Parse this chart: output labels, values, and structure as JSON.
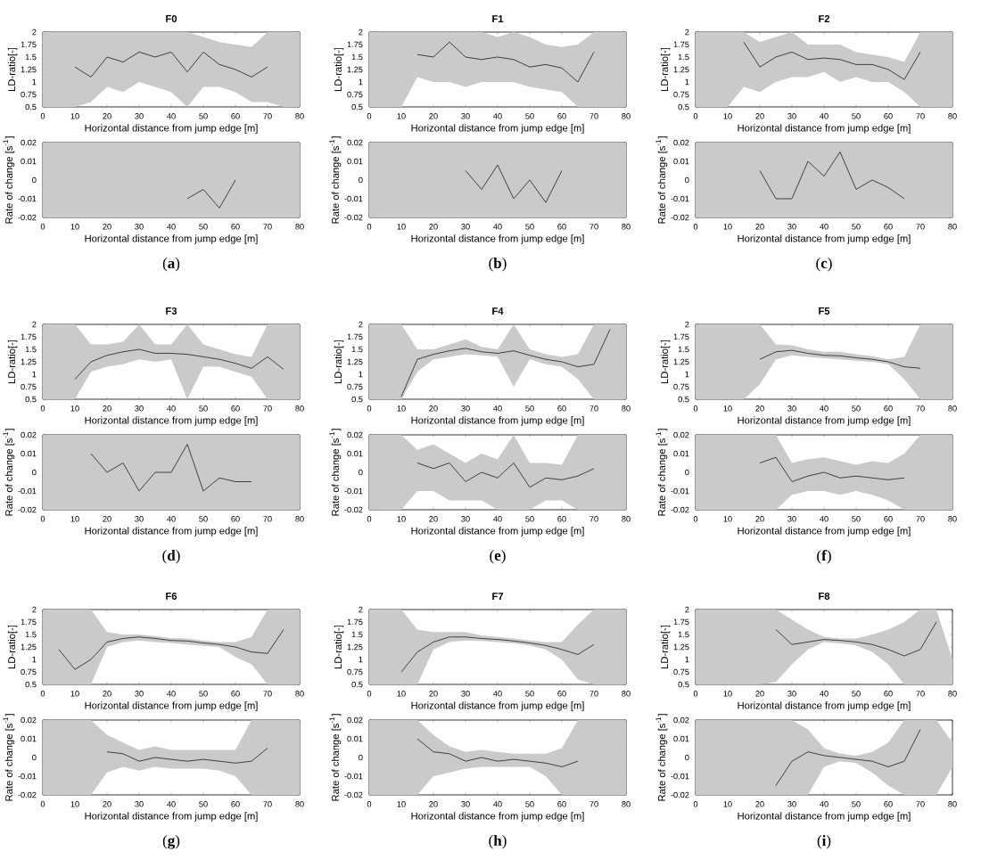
{
  "chart_data": [
    {
      "type": "line",
      "title": "F0",
      "xlabel": "Horizontal distance from jump edge [m]",
      "ylabel": "LD-ratio[-]",
      "x": [
        0,
        5,
        10,
        15,
        20,
        25,
        30,
        35,
        40,
        45,
        50,
        55,
        60,
        65,
        70,
        75,
        80
      ],
      "xlim": [
        0,
        80
      ],
      "ylim": [
        0.5,
        2
      ],
      "xticks": [
        0,
        10,
        20,
        30,
        40,
        50,
        60,
        70,
        80
      ],
      "yticks": [
        0.5,
        0.75,
        1,
        1.25,
        1.5,
        1.75,
        2
      ],
      "series": [
        {
          "color": "#404040",
          "values": [
            null,
            null,
            1.3,
            1.1,
            1.5,
            1.4,
            1.6,
            1.5,
            1.6,
            1.2,
            1.6,
            1.35,
            1.25,
            1.1,
            1.3,
            null,
            null
          ],
          "lower": [
            0.5,
            0.5,
            0.5,
            0.6,
            0.9,
            0.8,
            1.0,
            0.9,
            0.8,
            0.5,
            0.9,
            0.9,
            0.8,
            0.6,
            0.6,
            0.5,
            0.5
          ],
          "upper": [
            2,
            2,
            2,
            2,
            2,
            2,
            2,
            2,
            2,
            2,
            1.9,
            1.8,
            1.75,
            1.7,
            2,
            2,
            2
          ]
        }
      ]
    },
    {
      "type": "line",
      "xlabel": "Horizontal distance from jump edge [m]",
      "ylabel": "Rate of change [s$^{-1}$]",
      "xlim": [
        0,
        80
      ],
      "ylim": [
        -0.02,
        0.02
      ],
      "xticks": [
        0,
        10,
        20,
        30,
        40,
        50,
        60,
        70,
        80
      ],
      "yticks": [
        -0.02,
        -0.01,
        0,
        0.01,
        0.02
      ],
      "annotations": [
        "(**a**)"
      ],
      "bands": [
        {
          "axis": "x",
          "from": 0,
          "to": 80,
          "color": "#cacaca"
        }
      ],
      "series": [
        {
          "color": "#404040",
          "x": [
            45,
            50,
            55,
            60
          ],
          "values": [
            -0.01,
            -0.005,
            -0.015,
            0.0
          ]
        }
      ]
    },
    {
      "type": "line",
      "title": "F1",
      "xlabel": "Horizontal distance from jump edge [m]",
      "ylabel": "LD-ratio[-]",
      "x": [
        0,
        5,
        10,
        15,
        20,
        25,
        30,
        35,
        40,
        45,
        50,
        55,
        60,
        65,
        70,
        75,
        80
      ],
      "xlim": [
        0,
        80
      ],
      "ylim": [
        0.5,
        2
      ],
      "xticks": [
        0,
        10,
        20,
        30,
        40,
        50,
        60,
        70,
        80
      ],
      "yticks": [
        0.5,
        0.75,
        1,
        1.25,
        1.5,
        1.75,
        2
      ],
      "series": [
        {
          "color": "#404040",
          "values": [
            null,
            null,
            null,
            1.55,
            1.5,
            1.8,
            1.5,
            1.45,
            1.5,
            1.45,
            1.3,
            1.35,
            1.28,
            1.0,
            1.6,
            null,
            null
          ],
          "lower": [
            0.5,
            0.5,
            0.5,
            1.1,
            1.0,
            1.0,
            0.9,
            1.0,
            1.0,
            1.0,
            0.9,
            0.85,
            0.8,
            0.5,
            0.5,
            0.5,
            0.5
          ],
          "upper": [
            2,
            2,
            2,
            2,
            2,
            2,
            2,
            2,
            1.9,
            2,
            1.9,
            1.75,
            1.7,
            1.75,
            2,
            2,
            2
          ]
        }
      ]
    },
    {
      "type": "line",
      "xlabel": "Horizontal distance from jump edge [m]",
      "ylabel": "Rate of change [s$^{-1}$]",
      "xlim": [
        0,
        80
      ],
      "ylim": [
        -0.02,
        0.02
      ],
      "xticks": [
        0,
        10,
        20,
        30,
        40,
        50,
        60,
        70,
        80
      ],
      "yticks": [
        -0.02,
        -0.01,
        0,
        0.01,
        0.02
      ],
      "annotations": [
        "(**b**)"
      ],
      "bands": [
        {
          "axis": "x",
          "from": 0,
          "to": 80,
          "color": "#cacaca"
        }
      ],
      "series": [
        {
          "color": "#404040",
          "x": [
            30,
            35,
            40,
            45,
            50,
            55,
            60
          ],
          "values": [
            0.005,
            -0.005,
            0.008,
            -0.01,
            0.0,
            -0.012,
            0.005
          ]
        }
      ]
    },
    {
      "type": "line",
      "title": "F2",
      "xlabel": "Horizontal distance from jump edge [m]",
      "ylabel": "LD-ratio[-]",
      "x": [
        0,
        5,
        10,
        15,
        20,
        25,
        30,
        35,
        40,
        45,
        50,
        55,
        60,
        65,
        70,
        75,
        80
      ],
      "xlim": [
        0,
        80
      ],
      "ylim": [
        0.5,
        2
      ],
      "xticks": [
        0,
        10,
        20,
        30,
        40,
        50,
        60,
        70,
        80
      ],
      "yticks": [
        0.5,
        0.75,
        1,
        1.25,
        1.5,
        1.75,
        2
      ],
      "series": [
        {
          "color": "#404040",
          "values": [
            null,
            null,
            null,
            1.8,
            1.3,
            1.5,
            1.6,
            1.45,
            1.48,
            1.45,
            1.35,
            1.35,
            1.25,
            1.05,
            1.6,
            null,
            null
          ],
          "lower": [
            0.5,
            0.5,
            0.5,
            0.9,
            0.8,
            1.0,
            1.1,
            1.1,
            1.2,
            1.0,
            1.1,
            1.0,
            1.0,
            0.8,
            0.5,
            0.5,
            0.5
          ],
          "upper": [
            2,
            2,
            2,
            2,
            1.8,
            1.9,
            2,
            1.75,
            1.75,
            1.75,
            1.6,
            1.55,
            1.5,
            1.4,
            2,
            2,
            2
          ]
        }
      ]
    },
    {
      "type": "line",
      "xlabel": "Horizontal distance from jump edge [m]",
      "ylabel": "Rate of change [s$^{-1}$]",
      "xlim": [
        0,
        80
      ],
      "ylim": [
        -0.02,
        0.02
      ],
      "xticks": [
        0,
        10,
        20,
        30,
        40,
        50,
        60,
        70,
        80
      ],
      "yticks": [
        -0.02,
        -0.01,
        0,
        0.01,
        0.02
      ],
      "annotations": [
        "(**c**)"
      ],
      "bands": [
        {
          "axis": "x",
          "from": 0,
          "to": 80,
          "color": "#cacaca"
        }
      ],
      "series": [
        {
          "color": "#404040",
          "x": [
            20,
            25,
            30,
            35,
            40,
            45,
            50,
            55,
            60,
            65
          ],
          "values": [
            0.005,
            -0.01,
            -0.01,
            0.01,
            0.002,
            0.015,
            -0.005,
            0.0,
            -0.004,
            -0.01
          ]
        }
      ]
    },
    {
      "type": "line",
      "title": "F3",
      "xlabel": "Horizontal distance from jump edge [m]",
      "ylabel": "LD-ratio[-]",
      "x": [
        0,
        5,
        10,
        15,
        20,
        25,
        30,
        35,
        40,
        45,
        50,
        55,
        60,
        65,
        70,
        75,
        80
      ],
      "xlim": [
        0,
        80
      ],
      "ylim": [
        0.5,
        2
      ],
      "xticks": [
        0,
        10,
        20,
        30,
        40,
        50,
        60,
        70,
        80
      ],
      "yticks": [
        0.5,
        0.75,
        1,
        1.25,
        1.5,
        1.75,
        2
      ],
      "series": [
        {
          "color": "#404040",
          "values": [
            null,
            null,
            0.9,
            1.25,
            1.38,
            1.45,
            1.5,
            1.42,
            1.42,
            1.4,
            1.35,
            1.3,
            1.22,
            1.12,
            1.35,
            1.1,
            null
          ],
          "lower": [
            0.5,
            0.5,
            0.5,
            1.05,
            1.15,
            1.2,
            1.3,
            1.25,
            1.3,
            0.5,
            1.15,
            1.15,
            1.05,
            0.95,
            0.5,
            0.5,
            0.5
          ],
          "upper": [
            2,
            2,
            2,
            1.6,
            1.6,
            1.65,
            2,
            1.6,
            1.6,
            2,
            1.6,
            1.5,
            1.4,
            1.35,
            2,
            2,
            2
          ]
        }
      ]
    },
    {
      "type": "line",
      "xlabel": "Horizontal distance from jump edge [m]",
      "ylabel": "Rate of change [s$^{-1}$]",
      "xlim": [
        0,
        80
      ],
      "ylim": [
        -0.02,
        0.02
      ],
      "xticks": [
        0,
        10,
        20,
        30,
        40,
        50,
        60,
        70,
        80
      ],
      "yticks": [
        -0.02,
        -0.01,
        0,
        0.01,
        0.02
      ],
      "annotations": [
        "(**d**)"
      ],
      "bands": [
        {
          "axis": "x",
          "from": 0,
          "to": 80,
          "color": "#cacaca"
        }
      ],
      "series": [
        {
          "color": "#404040",
          "x": [
            15,
            20,
            25,
            30,
            35,
            40,
            45,
            50,
            55,
            60,
            65
          ],
          "values": [
            0.01,
            0.0,
            0.005,
            -0.01,
            0.0,
            0.0,
            0.015,
            -0.01,
            -0.003,
            -0.005,
            -0.005
          ]
        }
      ]
    },
    {
      "type": "line",
      "title": "F4",
      "xlabel": "Horizontal distance from jump edge [m]",
      "ylabel": "LD-ratio[-]",
      "x": [
        0,
        5,
        10,
        15,
        20,
        25,
        30,
        35,
        40,
        45,
        50,
        55,
        60,
        65,
        70,
        75,
        80
      ],
      "xlim": [
        0,
        80
      ],
      "ylim": [
        0.5,
        2
      ],
      "xticks": [
        0,
        10,
        20,
        30,
        40,
        50,
        60,
        70,
        80
      ],
      "yticks": [
        0.5,
        0.75,
        1,
        1.25,
        1.5,
        1.75,
        2
      ],
      "series": [
        {
          "color": "#404040",
          "values": [
            null,
            null,
            0.55,
            1.3,
            1.4,
            1.47,
            1.52,
            1.45,
            1.42,
            1.47,
            1.38,
            1.3,
            1.25,
            1.15,
            1.2,
            1.9,
            null
          ],
          "lower": [
            0.5,
            0.5,
            0.5,
            1.05,
            1.3,
            1.35,
            1.4,
            1.38,
            1.35,
            0.75,
            1.3,
            1.2,
            1.15,
            0.9,
            0.5,
            0.5,
            0.5
          ],
          "upper": [
            2,
            2,
            2,
            1.5,
            1.5,
            1.6,
            1.7,
            1.55,
            1.5,
            2,
            1.5,
            1.4,
            1.35,
            1.4,
            2,
            2,
            2
          ]
        }
      ]
    },
    {
      "type": "line",
      "xlabel": "Horizontal distance from jump edge [m]",
      "ylabel": "Rate of change [s$^{-1}$]",
      "x": [
        0,
        5,
        10,
        15,
        20,
        25,
        30,
        35,
        40,
        45,
        50,
        55,
        60,
        65,
        70,
        75,
        80
      ],
      "xlim": [
        0,
        80
      ],
      "ylim": [
        -0.02,
        0.02
      ],
      "xticks": [
        0,
        10,
        20,
        30,
        40,
        50,
        60,
        70,
        80
      ],
      "yticks": [
        -0.02,
        -0.01,
        0,
        0.01,
        0.02
      ],
      "annotations": [
        "(**e**)"
      ],
      "series": [
        {
          "color": "#404040",
          "values": [
            null,
            null,
            null,
            0.005,
            0.002,
            0.005,
            -0.005,
            0.0,
            -0.003,
            0.005,
            -0.008,
            -0.003,
            -0.004,
            -0.002,
            0.002,
            null,
            null
          ],
          "lower": [
            -0.02,
            -0.02,
            -0.02,
            -0.01,
            -0.01,
            -0.015,
            -0.015,
            -0.015,
            -0.02,
            -0.02,
            -0.02,
            -0.015,
            -0.015,
            -0.02,
            -0.02,
            -0.02,
            -0.02
          ],
          "upper": [
            0.02,
            0.02,
            0.02,
            0.012,
            0.015,
            0.01,
            0.005,
            0.01,
            0.007,
            0.02,
            0.005,
            0.005,
            0.004,
            0.02,
            0.02,
            0.02,
            0.02
          ]
        }
      ]
    },
    {
      "type": "line",
      "title": "F5",
      "xlabel": "Horizontal distance from jump edge [m]",
      "ylabel": "LD-ratio[-]",
      "x": [
        0,
        5,
        10,
        15,
        20,
        25,
        30,
        35,
        40,
        45,
        50,
        55,
        60,
        65,
        70,
        75,
        80
      ],
      "xlim": [
        0,
        80
      ],
      "ylim": [
        0.5,
        2
      ],
      "xticks": [
        0,
        10,
        20,
        30,
        40,
        50,
        60,
        70,
        80
      ],
      "yticks": [
        0.5,
        0.75,
        1,
        1.25,
        1.5,
        1.75,
        2
      ],
      "series": [
        {
          "color": "#404040",
          "values": [
            null,
            null,
            null,
            null,
            1.3,
            1.45,
            1.48,
            1.42,
            1.38,
            1.37,
            1.33,
            1.3,
            1.25,
            1.15,
            1.12,
            null,
            null
          ],
          "lower": [
            0.5,
            0.5,
            0.5,
            0.5,
            0.8,
            1.3,
            1.38,
            1.35,
            1.32,
            1.3,
            1.27,
            1.25,
            1.2,
            0.9,
            0.5,
            0.5,
            0.5
          ],
          "upper": [
            2,
            2,
            2,
            2,
            2,
            1.6,
            1.58,
            1.5,
            1.45,
            1.45,
            1.4,
            1.36,
            1.3,
            1.35,
            2,
            2,
            2
          ]
        }
      ]
    },
    {
      "type": "line",
      "xlabel": "Horizontal distance from jump edge [m]",
      "ylabel": "Rate of change [s$^{-1}$]",
      "x": [
        0,
        5,
        10,
        15,
        20,
        25,
        30,
        35,
        40,
        45,
        50,
        55,
        60,
        65,
        70,
        75,
        80
      ],
      "xlim": [
        0,
        80
      ],
      "ylim": [
        -0.02,
        0.02
      ],
      "xticks": [
        0,
        10,
        20,
        30,
        40,
        50,
        60,
        70,
        80
      ],
      "yticks": [
        -0.02,
        -0.01,
        0,
        0.01,
        0.02
      ],
      "annotations": [
        "(**f**)"
      ],
      "series": [
        {
          "color": "#404040",
          "values": [
            null,
            null,
            null,
            null,
            0.005,
            0.008,
            -0.005,
            -0.002,
            0.0,
            -0.003,
            -0.002,
            -0.003,
            -0.004,
            -0.003,
            null,
            null,
            null
          ],
          "lower": [
            -0.02,
            -0.02,
            -0.02,
            -0.02,
            -0.02,
            -0.02,
            -0.012,
            -0.01,
            -0.01,
            -0.012,
            -0.01,
            -0.012,
            -0.015,
            -0.02,
            -0.02,
            -0.02,
            -0.02
          ],
          "upper": [
            0.02,
            0.02,
            0.02,
            0.02,
            0.02,
            0.02,
            0.005,
            0.007,
            0.008,
            0.006,
            0.004,
            0.006,
            0.005,
            0.01,
            0.02,
            0.02,
            0.02
          ]
        }
      ]
    },
    {
      "type": "line",
      "title": "F6",
      "xlabel": "Horizontal distance from jump edge [m]",
      "ylabel": "LD-ratio[-]",
      "x": [
        0,
        5,
        10,
        15,
        20,
        25,
        30,
        35,
        40,
        45,
        50,
        55,
        60,
        65,
        70,
        75,
        80
      ],
      "xlim": [
        0,
        80
      ],
      "ylim": [
        0.5,
        2
      ],
      "xticks": [
        0,
        10,
        20,
        30,
        40,
        50,
        60,
        70,
        80
      ],
      "yticks": [
        0.5,
        0.75,
        1,
        1.25,
        1.5,
        1.75,
        2
      ],
      "series": [
        {
          "color": "#404040",
          "values": [
            null,
            1.2,
            0.8,
            1.0,
            1.35,
            1.42,
            1.45,
            1.42,
            1.38,
            1.37,
            1.33,
            1.3,
            1.25,
            1.15,
            1.12,
            1.6,
            null
          ],
          "lower": [
            0.5,
            0.5,
            0.5,
            0.5,
            1.25,
            1.35,
            1.38,
            1.35,
            1.33,
            1.3,
            1.27,
            1.25,
            1.05,
            0.9,
            0.5,
            0.5,
            0.5
          ],
          "upper": [
            2,
            2,
            2,
            2,
            1.55,
            1.5,
            1.5,
            1.47,
            1.43,
            1.42,
            1.38,
            1.35,
            1.35,
            1.45,
            2,
            2,
            2
          ]
        }
      ]
    },
    {
      "type": "line",
      "xlabel": "Horizontal distance from jump edge [m]",
      "ylabel": "Rate of change [s$^{-1}$]",
      "x": [
        0,
        5,
        10,
        15,
        20,
        25,
        30,
        35,
        40,
        45,
        50,
        55,
        60,
        65,
        70,
        75,
        80
      ],
      "xlim": [
        0,
        80
      ],
      "ylim": [
        -0.02,
        0.02
      ],
      "xticks": [
        0,
        10,
        20,
        30,
        40,
        50,
        60,
        70,
        80
      ],
      "yticks": [
        -0.02,
        -0.01,
        0,
        0.01,
        0.02
      ],
      "annotations": [
        "(**g**)"
      ],
      "series": [
        {
          "color": "#404040",
          "values": [
            null,
            null,
            null,
            null,
            0.003,
            0.002,
            -0.002,
            0.0,
            -0.001,
            -0.002,
            -0.001,
            -0.002,
            -0.003,
            -0.002,
            0.005,
            null,
            null
          ],
          "lower": [
            -0.02,
            -0.02,
            -0.02,
            -0.02,
            -0.008,
            -0.005,
            -0.007,
            -0.005,
            -0.006,
            -0.006,
            -0.006,
            -0.007,
            -0.01,
            -0.02,
            -0.02,
            -0.02,
            -0.02
          ],
          "upper": [
            0.02,
            0.02,
            0.02,
            0.02,
            0.012,
            0.008,
            0.004,
            0.006,
            0.004,
            0.004,
            0.004,
            0.004,
            0.004,
            0.02,
            0.02,
            0.02,
            0.02
          ]
        }
      ]
    },
    {
      "type": "line",
      "title": "F7",
      "xlabel": "Horizontal distance from jump edge [m]",
      "ylabel": "LD-ratio[-]",
      "x": [
        0,
        5,
        10,
        15,
        20,
        25,
        30,
        35,
        40,
        45,
        50,
        55,
        60,
        65,
        70,
        75,
        80
      ],
      "xlim": [
        0,
        80
      ],
      "ylim": [
        0.5,
        2
      ],
      "xticks": [
        0,
        10,
        20,
        30,
        40,
        50,
        60,
        70,
        80
      ],
      "yticks": [
        0.5,
        0.75,
        1,
        1.25,
        1.5,
        1.75,
        2
      ],
      "series": [
        {
          "color": "#404040",
          "values": [
            null,
            null,
            0.75,
            1.15,
            1.35,
            1.45,
            1.45,
            1.42,
            1.4,
            1.37,
            1.33,
            1.28,
            1.2,
            1.1,
            1.3,
            null,
            null
          ],
          "lower": [
            0.5,
            0.5,
            0.5,
            0.5,
            1.2,
            1.35,
            1.38,
            1.37,
            1.35,
            1.32,
            1.28,
            1.2,
            1.0,
            0.6,
            0.5,
            0.5,
            0.5
          ],
          "upper": [
            2,
            2,
            2,
            1.6,
            1.55,
            1.55,
            1.55,
            1.48,
            1.45,
            1.42,
            1.38,
            1.35,
            1.35,
            1.7,
            2,
            2,
            2
          ]
        }
      ]
    },
    {
      "type": "line",
      "xlabel": "Horizontal distance from jump edge [m]",
      "ylabel": "Rate of change [s$^{-1}$]",
      "x": [
        0,
        5,
        10,
        15,
        20,
        25,
        30,
        35,
        40,
        45,
        50,
        55,
        60,
        65,
        70,
        75,
        80
      ],
      "xlim": [
        0,
        80
      ],
      "ylim": [
        -0.02,
        0.02
      ],
      "xticks": [
        0,
        10,
        20,
        30,
        40,
        50,
        60,
        70,
        80
      ],
      "yticks": [
        -0.02,
        -0.01,
        0,
        0.01,
        0.02
      ],
      "annotations": [
        "(**h**)"
      ],
      "series": [
        {
          "color": "#404040",
          "values": [
            null,
            null,
            null,
            0.01,
            0.003,
            0.002,
            -0.002,
            0.0,
            -0.002,
            -0.001,
            -0.002,
            -0.003,
            -0.005,
            -0.002,
            null,
            null,
            null
          ],
          "lower": [
            -0.02,
            -0.02,
            -0.02,
            -0.02,
            -0.01,
            -0.008,
            -0.006,
            -0.005,
            -0.005,
            -0.005,
            -0.005,
            -0.01,
            -0.02,
            -0.02,
            -0.02,
            -0.02,
            -0.02
          ],
          "upper": [
            0.02,
            0.02,
            0.02,
            0.02,
            0.012,
            0.006,
            0.003,
            0.004,
            0.003,
            0.002,
            0.002,
            0.002,
            0.005,
            0.02,
            0.02,
            0.02,
            0.02
          ]
        }
      ]
    },
    {
      "type": "line",
      "title": "F8",
      "xlabel": "Horizontal distance from jump edge [m]",
      "ylabel": "LD-ratio[-]",
      "x": [
        0,
        5,
        10,
        15,
        20,
        25,
        30,
        35,
        40,
        45,
        50,
        55,
        60,
        65,
        70,
        75,
        80
      ],
      "xlim": [
        0,
        80
      ],
      "ylim": [
        0.5,
        2
      ],
      "xticks": [
        0,
        10,
        20,
        30,
        40,
        50,
        60,
        70,
        80
      ],
      "yticks": [
        0.5,
        0.75,
        1,
        1.25,
        1.5,
        1.75,
        2
      ],
      "series": [
        {
          "color": "#404040",
          "values": [
            null,
            null,
            null,
            null,
            null,
            1.6,
            1.3,
            1.35,
            1.4,
            1.38,
            1.35,
            1.3,
            1.2,
            1.07,
            1.2,
            1.75,
            null
          ],
          "lower": [
            0.5,
            0.5,
            0.5,
            0.5,
            0.5,
            0.55,
            0.9,
            1.2,
            1.35,
            1.32,
            1.28,
            1.15,
            0.9,
            0.5,
            0.5,
            0.5,
            0.5
          ],
          "upper": [
            2,
            2,
            2,
            2,
            2,
            2,
            1.8,
            1.6,
            1.45,
            1.42,
            1.42,
            1.5,
            1.6,
            1.75,
            2,
            2,
            1.0
          ]
        }
      ]
    },
    {
      "type": "line",
      "xlabel": "Horizontal distance from jump edge [m]",
      "ylabel": "Rate of change [s$^{-1}$]",
      "x": [
        0,
        5,
        10,
        15,
        20,
        25,
        30,
        35,
        40,
        45,
        50,
        55,
        60,
        65,
        70,
        75,
        80
      ],
      "xlim": [
        0,
        80
      ],
      "ylim": [
        -0.02,
        0.02
      ],
      "xticks": [
        0,
        10,
        20,
        30,
        40,
        50,
        60,
        70,
        80
      ],
      "yticks": [
        -0.02,
        -0.01,
        0,
        0.01,
        0.02
      ],
      "annotations": [
        "(**i**)"
      ],
      "series": [
        {
          "color": "#404040",
          "values": [
            null,
            null,
            null,
            null,
            null,
            -0.015,
            -0.002,
            0.003,
            0.001,
            0.0,
            -0.001,
            -0.002,
            -0.005,
            -0.002,
            0.015,
            null,
            null
          ],
          "lower": [
            -0.02,
            -0.02,
            -0.02,
            -0.02,
            -0.02,
            -0.02,
            -0.02,
            -0.02,
            -0.005,
            -0.002,
            -0.003,
            -0.008,
            -0.015,
            -0.02,
            -0.02,
            -0.02,
            -0.005
          ],
          "upper": [
            0.02,
            0.02,
            0.02,
            0.02,
            0.02,
            0.02,
            0.02,
            0.015,
            0.005,
            0.002,
            0.001,
            0.003,
            0.008,
            0.02,
            0.02,
            0.02,
            0.008
          ]
        }
      ]
    }
  ]
}
